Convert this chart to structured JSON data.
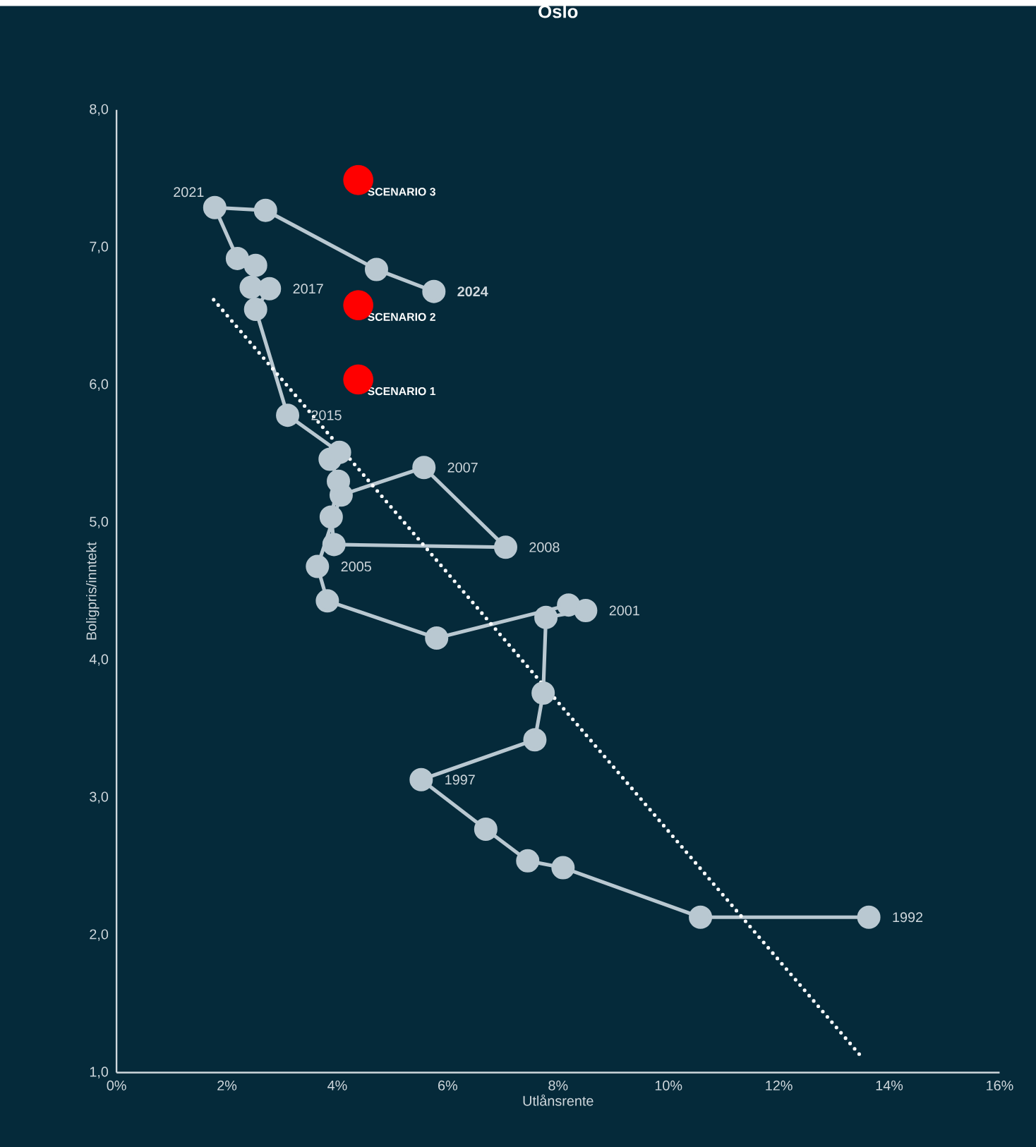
{
  "chart_data": {
    "type": "line",
    "title": "Oslo",
    "xlabel": "Utlånsrente",
    "ylabel": "Boligpris/inntekt",
    "xlim": [
      0,
      16
    ],
    "ylim": [
      1,
      8
    ],
    "xticks": [
      {
        "value": 0,
        "label": "0%"
      },
      {
        "value": 2,
        "label": "2%"
      },
      {
        "value": 4,
        "label": "4%"
      },
      {
        "value": 6,
        "label": "6%"
      },
      {
        "value": 8,
        "label": "8%"
      },
      {
        "value": 10,
        "label": "10%"
      },
      {
        "value": 12,
        "label": "12%"
      },
      {
        "value": 14,
        "label": "14%"
      },
      {
        "value": 16,
        "label": "16%"
      }
    ],
    "yticks": [
      {
        "value": 1,
        "label": "1,0"
      },
      {
        "value": 2,
        "label": "2,0"
      },
      {
        "value": 3,
        "label": "3,0"
      },
      {
        "value": 4,
        "label": "4,0"
      },
      {
        "value": 5,
        "label": "5,0"
      },
      {
        "value": 6,
        "label": "6,0"
      },
      {
        "value": 7,
        "label": "7,0"
      },
      {
        "value": 8,
        "label": "8,0"
      }
    ],
    "grid": false,
    "marker": "circle",
    "line_style": "solid",
    "series": [
      {
        "color": "#b9c8d1",
        "x": [
          13.63,
          10.58,
          8.09,
          7.45,
          6.69,
          5.52,
          7.58,
          7.73,
          7.78,
          8.5,
          8.19,
          5.8,
          3.82,
          3.64,
          4.07,
          5.57,
          7.05,
          3.94,
          3.89,
          4.02,
          3.87,
          4.04,
          3.1,
          2.52,
          2.77,
          2.44,
          2.52,
          2.19,
          1.78,
          2.7,
          4.71,
          5.75
        ],
        "values": [
          2.13,
          2.13,
          2.49,
          2.54,
          2.77,
          3.13,
          3.42,
          3.76,
          4.31,
          4.36,
          4.4,
          4.16,
          4.43,
          4.68,
          5.2,
          5.4,
          4.82,
          4.84,
          5.04,
          5.3,
          5.46,
          5.51,
          5.78,
          6.55,
          6.7,
          6.71,
          6.87,
          6.92,
          7.29,
          7.27,
          6.84,
          6.68
        ]
      },
      {
        "type": "line",
        "color": "#ffffff",
        "line_style": "dotted",
        "marker": "none",
        "x": [
          1.76,
          13.53
        ],
        "values": [
          6.62,
          1.1
        ]
      },
      {
        "type": "scatter",
        "color": "#ff0000",
        "x": [
          4.38,
          4.38,
          4.38
        ],
        "values": [
          7.49,
          6.58,
          6.04
        ]
      }
    ],
    "annotations": [
      {
        "text": "1992",
        "x": 13.63,
        "y": 2.13
      },
      {
        "text": "1997",
        "x": 5.52,
        "y": 3.13
      },
      {
        "text": "2001",
        "x": 8.5,
        "y": 4.36
      },
      {
        "text": "2005",
        "x": 3.64,
        "y": 4.68
      },
      {
        "text": "2008",
        "x": 7.05,
        "y": 4.82
      },
      {
        "text": "2007",
        "x": 5.57,
        "y": 5.4
      },
      {
        "text": "2015",
        "x": 3.1,
        "y": 5.78
      },
      {
        "text": "2017",
        "x": 2.77,
        "y": 6.7
      },
      {
        "text": "2021",
        "x": 1.78,
        "y": 7.29
      },
      {
        "text": "**2024**",
        "x": 5.75,
        "y": 6.68
      },
      {
        "text": "SCENARIO 3",
        "x": 4.38,
        "y": 7.49
      },
      {
        "text": "SCENARIO 2",
        "x": 4.38,
        "y": 6.58
      },
      {
        "text": "SCENARIO 1",
        "x": 4.38,
        "y": 6.04
      }
    ]
  }
}
